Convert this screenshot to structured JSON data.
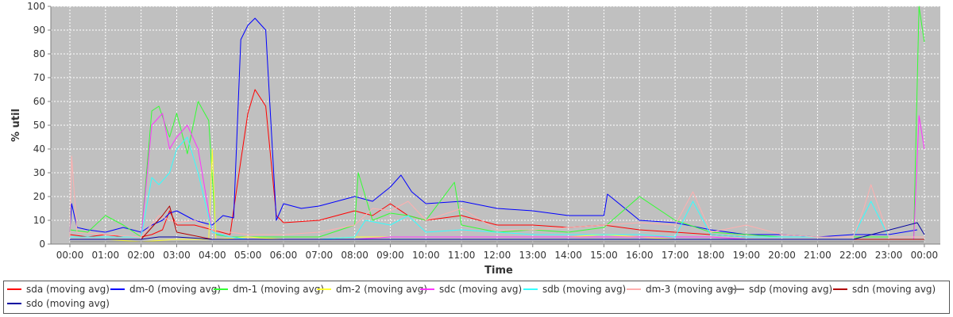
{
  "chart_data": {
    "type": "line",
    "title": "",
    "xlabel": "Time",
    "ylabel": "% util",
    "ylim": [
      0,
      100
    ],
    "yticks": [
      "0",
      "10",
      "20",
      "30",
      "40",
      "50",
      "60",
      "70",
      "80",
      "90",
      "100"
    ],
    "xticks": [
      "00:00",
      "01:00",
      "02:00",
      "03:00",
      "04:00",
      "05:00",
      "06:00",
      "07:00",
      "08:00",
      "09:00",
      "10:00",
      "11:00",
      "12:00",
      "13:00",
      "14:00",
      "15:00",
      "16:00",
      "17:00",
      "18:00",
      "19:00",
      "20:00",
      "21:00",
      "22:00",
      "23:00",
      "00:00"
    ],
    "x_unit": "hours since first tick (00:00)",
    "grid": true,
    "legend_position": "bottom",
    "background": "#c0c0c0",
    "series": [
      {
        "name": "sda (moving avg)",
        "color": "#ff0000",
        "x": [
          0,
          0.5,
          1,
          1.5,
          2,
          2.3,
          2.6,
          2.8,
          3,
          3.5,
          4,
          4.5,
          4.8,
          5,
          5.2,
          5.5,
          5.8,
          6,
          7,
          8,
          8.5,
          9,
          9.5,
          10,
          11,
          12,
          13,
          14,
          15,
          16,
          17,
          18,
          19,
          20,
          21,
          22,
          23,
          23.8
        ],
        "y": [
          4,
          3,
          4,
          3,
          3,
          4,
          6,
          14,
          8,
          8,
          6,
          4,
          35,
          55,
          65,
          58,
          12,
          9,
          10,
          14,
          12,
          17,
          12,
          10,
          12,
          8,
          8,
          7,
          8,
          6,
          5,
          4,
          3,
          3,
          3,
          3,
          3,
          3
        ]
      },
      {
        "name": "dm-0 (moving avg)",
        "color": "#0000ff",
        "x": [
          0,
          0.05,
          0.2,
          0.5,
          1,
          1.5,
          2,
          2.3,
          2.6,
          2.8,
          3,
          3.5,
          4,
          4.3,
          4.6,
          4.8,
          5,
          5.2,
          5.5,
          5.8,
          6,
          6.5,
          7,
          8,
          8.5,
          9,
          9.3,
          9.6,
          10,
          11,
          12,
          13,
          14,
          15,
          15.1,
          16,
          17,
          18,
          19,
          20,
          21,
          22,
          23,
          23.8
        ],
        "y": [
          5,
          17,
          7,
          6,
          5,
          7,
          5,
          8,
          10,
          13,
          14,
          10,
          8,
          12,
          11,
          86,
          92,
          95,
          90,
          10,
          17,
          15,
          16,
          20,
          18,
          24,
          29,
          22,
          17,
          18,
          15,
          14,
          12,
          12,
          21,
          10,
          9,
          6,
          4,
          4,
          3,
          4,
          4,
          6
        ]
      },
      {
        "name": "dm-1 (moving avg)",
        "color": "#33ff33",
        "x": [
          0,
          0.5,
          1,
          1.5,
          2,
          2.3,
          2.5,
          2.8,
          3,
          3.3,
          3.6,
          3.9,
          4.1,
          4.5,
          5,
          6,
          7,
          8,
          8.1,
          8.5,
          9,
          9.5,
          10,
          10.8,
          11,
          12,
          13,
          14,
          15,
          16,
          17,
          18,
          19,
          20,
          21,
          22,
          23,
          23.7,
          23.85,
          24
        ],
        "y": [
          6,
          5,
          12,
          8,
          3,
          56,
          58,
          45,
          55,
          38,
          60,
          52,
          4,
          3,
          3,
          3,
          3,
          8,
          30,
          10,
          13,
          12,
          10,
          26,
          8,
          5,
          6,
          5,
          7,
          20,
          10,
          5,
          4,
          3,
          3,
          3,
          3,
          3,
          100,
          85
        ]
      },
      {
        "name": "dm-2 (moving avg)",
        "color": "#ffff33",
        "x": [
          0,
          1,
          2,
          3,
          3.9,
          4,
          4.1,
          5,
          6,
          7,
          8,
          9,
          10,
          11,
          12,
          13,
          14,
          15,
          16,
          17,
          18,
          19,
          20,
          21,
          22,
          23,
          24
        ],
        "y": [
          2,
          2,
          1,
          2,
          2,
          40,
          2,
          3,
          2,
          2,
          3,
          3,
          3,
          3,
          3,
          3,
          3,
          4,
          3,
          2,
          2,
          2,
          2,
          2,
          2,
          2,
          2
        ]
      },
      {
        "name": "sdc (moving avg)",
        "color": "#ff33ff",
        "x": [
          0,
          1,
          2,
          2.3,
          2.6,
          2.8,
          3,
          3.3,
          3.6,
          4,
          4.5,
          5,
          6,
          7,
          8,
          9,
          10,
          11,
          12,
          13,
          14,
          15,
          16,
          17,
          18,
          19,
          20,
          21,
          22,
          23,
          23.7,
          23.85,
          24
        ],
        "y": [
          3,
          3,
          3,
          50,
          55,
          40,
          45,
          50,
          40,
          5,
          3,
          2,
          2,
          2,
          2,
          3,
          3,
          3,
          3,
          3,
          3,
          3,
          3,
          3,
          3,
          2,
          2,
          2,
          2,
          2,
          2,
          54,
          40
        ]
      },
      {
        "name": "sdb (moving avg)",
        "color": "#33ffff",
        "x": [
          0,
          1,
          2,
          2.3,
          2.5,
          2.8,
          3,
          3.3,
          3.6,
          4,
          4.5,
          5,
          6,
          7,
          8,
          8.3,
          9,
          9.5,
          10,
          11,
          12,
          13,
          14,
          15,
          16,
          17,
          17.5,
          18,
          19,
          20,
          21,
          22,
          22.5,
          23,
          24
        ],
        "y": [
          3,
          3,
          3,
          28,
          25,
          30,
          40,
          45,
          30,
          5,
          3,
          2,
          2,
          2,
          3,
          10,
          8,
          12,
          5,
          6,
          5,
          4,
          4,
          4,
          4,
          3,
          18,
          4,
          3,
          3,
          3,
          3,
          18,
          3,
          3
        ]
      },
      {
        "name": "dm-3 (moving avg)",
        "color": "#ffafaf",
        "x": [
          0,
          0.05,
          0.2,
          1,
          2,
          2.5,
          3,
          3.5,
          4,
          5,
          6,
          7,
          8,
          8.5,
          9,
          9.5,
          10,
          11,
          12,
          13,
          14,
          15,
          16,
          17,
          17.5,
          18,
          19,
          20,
          21,
          22,
          22.3,
          22.5,
          23,
          24
        ],
        "y": [
          3,
          37,
          5,
          4,
          3,
          12,
          9,
          10,
          6,
          4,
          4,
          5,
          8,
          15,
          14,
          18,
          10,
          15,
          6,
          6,
          7,
          8,
          9,
          8,
          22,
          5,
          8,
          4,
          3,
          3,
          15,
          25,
          3,
          3
        ]
      },
      {
        "name": "sdp (moving avg)",
        "color": "#808080",
        "x": [
          0,
          2,
          4,
          6,
          8,
          10,
          12,
          14,
          16,
          18,
          20,
          22,
          24
        ],
        "y": [
          1,
          1,
          1,
          1,
          1,
          1,
          1,
          1,
          1,
          1,
          1,
          1,
          1
        ]
      },
      {
        "name": "sdn (moving avg)",
        "color": "#b00000",
        "x": [
          0,
          1,
          2,
          2.6,
          2.8,
          3,
          4,
          5,
          6,
          8,
          10,
          12,
          14,
          16,
          18,
          20,
          22,
          24
        ],
        "y": [
          2,
          2,
          2,
          12,
          16,
          5,
          2,
          2,
          2,
          2,
          2,
          2,
          2,
          2,
          2,
          2,
          2,
          2
        ]
      },
      {
        "name": "sdo (moving avg)",
        "color": "#0000a0",
        "x": [
          0,
          1,
          2,
          2.5,
          3,
          4,
          5,
          6,
          8,
          10,
          12,
          14,
          16,
          18,
          20,
          22,
          23.8,
          24
        ],
        "y": [
          2,
          2,
          2,
          3,
          3,
          2,
          2,
          2,
          2,
          2,
          2,
          2,
          2,
          2,
          2,
          2,
          9,
          4
        ]
      }
    ]
  }
}
